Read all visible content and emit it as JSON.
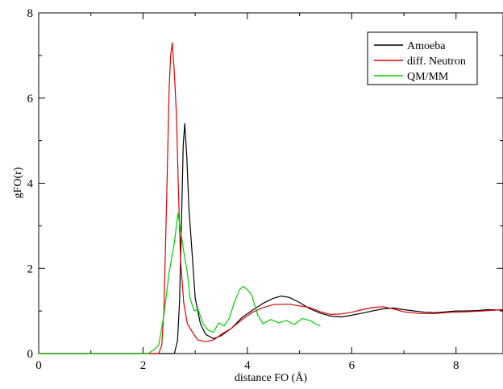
{
  "chart_data": {
    "type": "line",
    "title": "",
    "xlabel": "distance FO (Å)",
    "ylabel": "gFO(r)",
    "xlim": [
      0,
      8.9
    ],
    "ylim": [
      0,
      8
    ],
    "x_ticks": [
      0,
      2,
      4,
      6,
      8
    ],
    "y_ticks": [
      0,
      2,
      4,
      6,
      8
    ],
    "x_tick_labels": [
      "0",
      "2",
      "4",
      "6",
      "8"
    ],
    "y_tick_labels": [
      "0",
      "2",
      "4",
      "6",
      "8"
    ],
    "grid": false,
    "legend_position": "top-right",
    "series": [
      {
        "name": "Amoeba",
        "color": "#000000",
        "points": [
          [
            0,
            0
          ],
          [
            2.6,
            0
          ],
          [
            2.66,
            0.3
          ],
          [
            2.7,
            1.2
          ],
          [
            2.74,
            3.2
          ],
          [
            2.77,
            4.9
          ],
          [
            2.8,
            5.4
          ],
          [
            2.84,
            4.6
          ],
          [
            2.88,
            3.4
          ],
          [
            2.95,
            2.2
          ],
          [
            3.0,
            1.3
          ],
          [
            3.1,
            0.7
          ],
          [
            3.2,
            0.45
          ],
          [
            3.35,
            0.35
          ],
          [
            3.5,
            0.42
          ],
          [
            3.7,
            0.6
          ],
          [
            3.9,
            0.85
          ],
          [
            4.1,
            1.02
          ],
          [
            4.3,
            1.18
          ],
          [
            4.5,
            1.3
          ],
          [
            4.65,
            1.35
          ],
          [
            4.8,
            1.32
          ],
          [
            5.0,
            1.2
          ],
          [
            5.2,
            1.05
          ],
          [
            5.4,
            0.95
          ],
          [
            5.6,
            0.88
          ],
          [
            5.8,
            0.86
          ],
          [
            6.0,
            0.9
          ],
          [
            6.2,
            0.95
          ],
          [
            6.4,
            1.0
          ],
          [
            6.6,
            1.05
          ],
          [
            6.8,
            1.07
          ],
          [
            7.0,
            1.03
          ],
          [
            7.2,
            1.0
          ],
          [
            7.4,
            0.97
          ],
          [
            7.6,
            0.96
          ],
          [
            7.8,
            0.98
          ],
          [
            8.0,
            1.0
          ],
          [
            8.2,
            1.0
          ],
          [
            8.4,
            1.01
          ],
          [
            8.6,
            1.03
          ],
          [
            8.9,
            1.02
          ]
        ]
      },
      {
        "name": "diff. Neutron",
        "color": "#e00000",
        "points": [
          [
            0,
            0
          ],
          [
            2.3,
            0
          ],
          [
            2.36,
            0.2
          ],
          [
            2.4,
            1.0
          ],
          [
            2.45,
            3.5
          ],
          [
            2.5,
            6.2
          ],
          [
            2.53,
            7.0
          ],
          [
            2.56,
            7.3
          ],
          [
            2.6,
            6.6
          ],
          [
            2.64,
            5.6
          ],
          [
            2.68,
            3.8
          ],
          [
            2.72,
            2.2
          ],
          [
            2.78,
            1.2
          ],
          [
            2.85,
            0.7
          ],
          [
            2.95,
            0.5
          ],
          [
            3.05,
            0.32
          ],
          [
            3.2,
            0.28
          ],
          [
            3.35,
            0.32
          ],
          [
            3.5,
            0.45
          ],
          [
            3.7,
            0.6
          ],
          [
            3.9,
            0.8
          ],
          [
            4.1,
            0.97
          ],
          [
            4.3,
            1.08
          ],
          [
            4.5,
            1.15
          ],
          [
            4.8,
            1.16
          ],
          [
            5.0,
            1.12
          ],
          [
            5.2,
            1.08
          ],
          [
            5.4,
            0.98
          ],
          [
            5.6,
            0.92
          ],
          [
            5.8,
            0.93
          ],
          [
            6.0,
            0.97
          ],
          [
            6.2,
            1.03
          ],
          [
            6.4,
            1.08
          ],
          [
            6.6,
            1.1
          ],
          [
            6.8,
            1.05
          ],
          [
            7.0,
            0.98
          ],
          [
            7.3,
            0.94
          ],
          [
            7.6,
            0.94
          ],
          [
            7.9,
            0.97
          ],
          [
            8.2,
            0.98
          ],
          [
            8.5,
            1.0
          ],
          [
            8.9,
            1.03
          ]
        ]
      },
      {
        "name": "QM/MM",
        "color": "#00d000",
        "points": [
          [
            0,
            0
          ],
          [
            2.1,
            0
          ],
          [
            2.2,
            0.08
          ],
          [
            2.3,
            0.2
          ],
          [
            2.4,
            0.9
          ],
          [
            2.5,
            1.9
          ],
          [
            2.6,
            2.6
          ],
          [
            2.67,
            3.3
          ],
          [
            2.72,
            2.9
          ],
          [
            2.78,
            2.4
          ],
          [
            2.85,
            1.9
          ],
          [
            2.9,
            1.3
          ],
          [
            2.98,
            1.0
          ],
          [
            3.05,
            1.05
          ],
          [
            3.15,
            0.7
          ],
          [
            3.25,
            0.55
          ],
          [
            3.35,
            0.5
          ],
          [
            3.45,
            0.72
          ],
          [
            3.55,
            0.65
          ],
          [
            3.65,
            0.82
          ],
          [
            3.75,
            1.2
          ],
          [
            3.85,
            1.5
          ],
          [
            3.92,
            1.58
          ],
          [
            4.0,
            1.5
          ],
          [
            4.08,
            1.38
          ],
          [
            4.15,
            1.1
          ],
          [
            4.2,
            0.9
          ],
          [
            4.3,
            0.7
          ],
          [
            4.45,
            0.8
          ],
          [
            4.6,
            0.72
          ],
          [
            4.75,
            0.78
          ],
          [
            4.9,
            0.68
          ],
          [
            5.05,
            0.82
          ],
          [
            5.2,
            0.78
          ],
          [
            5.3,
            0.7
          ],
          [
            5.4,
            0.65
          ]
        ]
      }
    ]
  }
}
